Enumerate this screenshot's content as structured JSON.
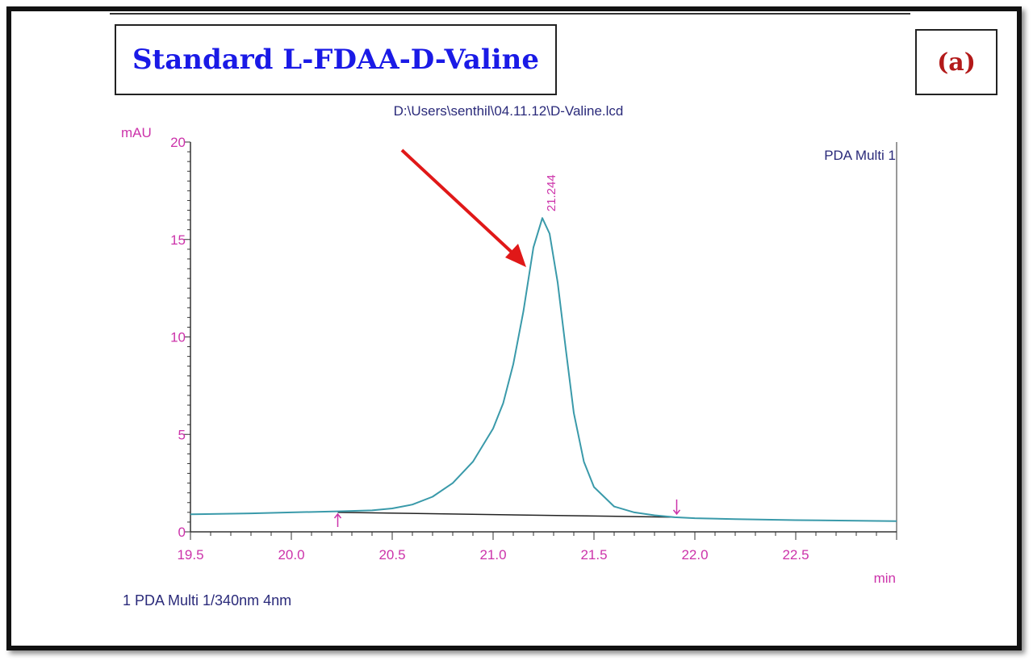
{
  "title": "Standard L-FDAA-D-Valine",
  "panel_label": "(a)",
  "file_path": "D:\\Users\\senthil\\04.11.12\\D-Valine.lcd",
  "detector_label": "PDA Multi 1",
  "legend_text": "1  PDA Multi 1/340nm 4nm",
  "colors": {
    "title": "#1a1ae6",
    "panel_label": "#b31919",
    "axis_text": "#cc33aa",
    "trace": "#3a9aaa",
    "baseline": "#222222",
    "arrow": "#e01818"
  },
  "chart_data": {
    "type": "line",
    "xlabel": "min",
    "ylabel": "mAU",
    "xlim": [
      19.5,
      23.0
    ],
    "ylim": [
      0,
      20
    ],
    "x_ticks": [
      19.5,
      20.0,
      20.5,
      21.0,
      21.5,
      22.0,
      22.5
    ],
    "x_tick_labels": [
      "19.5",
      "20.0",
      "20.5",
      "21.0",
      "21.5",
      "22.0",
      "22.5"
    ],
    "y_ticks": [
      0,
      5,
      10,
      15,
      20
    ],
    "y_tick_labels": [
      "0",
      "5",
      "10",
      "15",
      "20"
    ],
    "series": [
      {
        "name": "PDA Multi 1",
        "x": [
          19.5,
          19.8,
          20.0,
          20.23,
          20.4,
          20.5,
          20.6,
          20.7,
          20.8,
          20.9,
          21.0,
          21.05,
          21.1,
          21.15,
          21.2,
          21.244,
          21.28,
          21.32,
          21.36,
          21.4,
          21.45,
          21.5,
          21.6,
          21.7,
          21.8,
          21.9,
          22.0,
          22.2,
          22.5,
          23.0
        ],
        "y": [
          0.9,
          0.95,
          1.0,
          1.05,
          1.1,
          1.2,
          1.4,
          1.8,
          2.5,
          3.6,
          5.3,
          6.6,
          8.6,
          11.3,
          14.6,
          16.1,
          15.3,
          12.8,
          9.4,
          6.1,
          3.6,
          2.3,
          1.3,
          1.0,
          0.85,
          0.75,
          0.7,
          0.65,
          0.6,
          0.55
        ]
      }
    ],
    "baseline": {
      "x": [
        20.23,
        21.91
      ],
      "y": [
        1.0,
        0.75
      ]
    },
    "peak_annotation": {
      "x": 21.244,
      "y": 16.1,
      "label": "21.244"
    },
    "integration_markers": [
      {
        "x": 20.23,
        "direction": "up"
      },
      {
        "x": 21.91,
        "direction": "down"
      }
    ]
  }
}
